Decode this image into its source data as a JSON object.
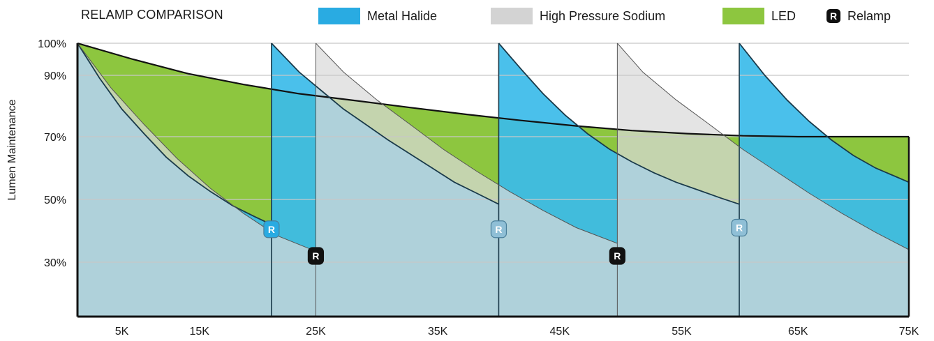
{
  "chart_data": {
    "type": "area",
    "title": "RELAMP COMPARISON",
    "ylabel": "Lumen Maintenance",
    "xlabel": "",
    "x_domain": [
      0,
      75
    ],
    "y_domain": [
      10,
      100
    ],
    "x_ticks": [
      {
        "value": 5,
        "label": "5K"
      },
      {
        "value": 15,
        "label": "15K"
      },
      {
        "value": 25,
        "label": "25K"
      },
      {
        "value": 35,
        "label": "35K"
      },
      {
        "value": 45,
        "label": "45K"
      },
      {
        "value": 55,
        "label": "55K"
      },
      {
        "value": 65,
        "label": "65K"
      },
      {
        "value": 75,
        "label": "75K"
      }
    ],
    "x_tick_positions": [
      4,
      11,
      21.5,
      32.5,
      43.5,
      54.5,
      65,
      75
    ],
    "y_ticks": [
      {
        "value": 100,
        "label": "100%"
      },
      {
        "value": 90,
        "label": "90%"
      },
      {
        "value": 70,
        "label": "70%"
      },
      {
        "value": 50,
        "label": "50%"
      },
      {
        "value": 30,
        "label": "30%"
      }
    ],
    "grid": true,
    "legend": {
      "position": "top",
      "items": [
        {
          "label": "Metal Halide",
          "color": "#29abe2"
        },
        {
          "label": "High Pressure Sodium",
          "color": "#d3d3d3"
        },
        {
          "label": "LED",
          "color": "#8dc63f"
        },
        {
          "label": "Relamp",
          "color": "#111111",
          "icon": "R"
        }
      ]
    },
    "series": [
      {
        "name": "LED",
        "color": "#8dc63f",
        "points": [
          [
            0,
            100
          ],
          [
            5,
            95
          ],
          [
            10,
            90.5
          ],
          [
            15,
            87
          ],
          [
            20,
            84
          ],
          [
            25,
            81.8
          ],
          [
            30,
            79.5
          ],
          [
            35,
            77.3
          ],
          [
            40,
            75.3
          ],
          [
            45,
            73.5
          ],
          [
            50,
            72
          ],
          [
            55,
            71
          ],
          [
            60,
            70.3
          ],
          [
            65,
            70
          ],
          [
            70,
            70
          ],
          [
            75,
            70
          ]
        ]
      },
      {
        "name": "Metal Halide",
        "color": "#29abe2",
        "relamp_at": [
          17.5,
          38,
          59.7
        ],
        "cycles": [
          [
            [
              0,
              100
            ],
            [
              2,
              89
            ],
            [
              4,
              79
            ],
            [
              6,
              71
            ],
            [
              8,
              63.5
            ],
            [
              10,
              57.5
            ],
            [
              12,
              52.5
            ],
            [
              14,
              48
            ],
            [
              16,
              44.5
            ],
            [
              17.5,
              42
            ]
          ],
          [
            [
              17.5,
              100
            ],
            [
              20,
              91
            ],
            [
              22,
              85
            ],
            [
              24,
              79
            ],
            [
              26,
              74
            ],
            [
              28,
              69
            ],
            [
              30,
              64.5
            ],
            [
              32,
              60
            ],
            [
              34,
              55.5
            ],
            [
              36,
              52
            ],
            [
              38,
              48.5
            ]
          ],
          [
            [
              38,
              100
            ],
            [
              40,
              92
            ],
            [
              42,
              84
            ],
            [
              44,
              77
            ],
            [
              46,
              71
            ],
            [
              48,
              66
            ],
            [
              50,
              62
            ],
            [
              52,
              58.5
            ],
            [
              54,
              55.5
            ],
            [
              56,
              53
            ],
            [
              58,
              50.5
            ],
            [
              59.7,
              48.5
            ]
          ],
          [
            [
              59.7,
              100
            ],
            [
              62,
              90
            ],
            [
              64,
              82
            ],
            [
              66,
              75
            ],
            [
              68,
              69
            ],
            [
              70,
              64
            ],
            [
              72,
              60
            ],
            [
              74,
              57
            ],
            [
              75,
              55.5
            ]
          ]
        ]
      },
      {
        "name": "High Pressure Sodium",
        "color": "#d3d3d3",
        "relamp_at": [
          21.5,
          48.7
        ],
        "cycles": [
          [
            [
              0,
              100
            ],
            [
              3,
              86
            ],
            [
              6,
              74
            ],
            [
              9,
              63
            ],
            [
              12,
              53.5
            ],
            [
              15,
              45.5
            ],
            [
              18,
              38.5
            ],
            [
              21.5,
              33.5
            ]
          ],
          [
            [
              21.5,
              100
            ],
            [
              24,
              91
            ],
            [
              27,
              82
            ],
            [
              30,
              74
            ],
            [
              33,
              66
            ],
            [
              36,
              59
            ],
            [
              39,
              52.5
            ],
            [
              42,
              46.5
            ],
            [
              45,
              41
            ],
            [
              48.7,
              36
            ]
          ],
          [
            [
              48.7,
              100
            ],
            [
              51,
              91
            ],
            [
              54,
              82
            ],
            [
              57,
              74
            ],
            [
              60,
              66
            ],
            [
              63,
              59
            ],
            [
              66,
              52
            ],
            [
              69,
              45.5
            ],
            [
              72,
              39.5
            ],
            [
              75,
              34
            ]
          ]
        ]
      }
    ],
    "relamp_markers": [
      {
        "x": 17.5,
        "y": 40.5,
        "color": "#29abe2"
      },
      {
        "x": 21.5,
        "y": 32,
        "color": "#111111"
      },
      {
        "x": 38,
        "y": 40.5,
        "color": "#8fbfd6"
      },
      {
        "x": 48.7,
        "y": 32,
        "color": "#111111"
      },
      {
        "x": 59.7,
        "y": 41,
        "color": "#8fbfd6"
      }
    ],
    "badge_label": "R"
  }
}
